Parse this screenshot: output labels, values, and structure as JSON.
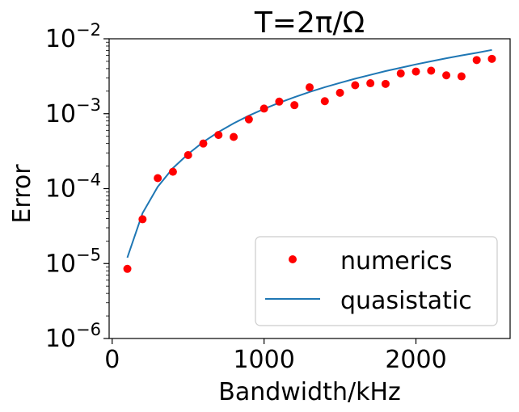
{
  "chart_data": {
    "type": "scatter",
    "title": "T=2π/Ω",
    "xlabel": "Bandwidth/kHz",
    "ylabel": "Error",
    "xlim": [
      -20,
      2620
    ],
    "ylim": [
      1e-06,
      0.01
    ],
    "yscale": "log",
    "grid": false,
    "legend_position": "lower-right",
    "x_ticks": [
      {
        "value": 0,
        "label": "0"
      },
      {
        "value": 1000,
        "label": "1000"
      },
      {
        "value": 2000,
        "label": "2000"
      }
    ],
    "y_ticks": [
      {
        "value": 1e-06,
        "base": "10",
        "exp": "−6"
      },
      {
        "value": 1e-05,
        "base": "10",
        "exp": "−5"
      },
      {
        "value": 0.0001,
        "base": "10",
        "exp": "−4"
      },
      {
        "value": 0.001,
        "base": "10",
        "exp": "−3"
      },
      {
        "value": 0.01,
        "base": "10",
        "exp": "−2"
      }
    ],
    "series": [
      {
        "name": "numerics",
        "kind": "scatter",
        "color": "#ff0000",
        "x": [
          100,
          200,
          300,
          400,
          500,
          600,
          700,
          800,
          900,
          1000,
          1100,
          1200,
          1300,
          1400,
          1500,
          1600,
          1700,
          1800,
          1900,
          2000,
          2100,
          2200,
          2300,
          2400,
          2500
        ],
        "y": [
          8.5e-06,
          3.9e-05,
          0.000138,
          0.000168,
          0.00028,
          0.0004,
          0.00052,
          0.00049,
          0.00084,
          0.00117,
          0.00145,
          0.0013,
          0.00225,
          0.00147,
          0.0019,
          0.0024,
          0.00255,
          0.0025,
          0.00345,
          0.00365,
          0.00375,
          0.00325,
          0.00315,
          0.0052,
          0.0054
        ]
      },
      {
        "name": "quasistatic",
        "kind": "line",
        "color": "#1f77b4",
        "x": [
          100,
          200,
          300,
          400,
          500,
          600,
          700,
          800,
          900,
          1000,
          1100,
          1200,
          1300,
          1400,
          1500,
          1600,
          1700,
          1800,
          1900,
          2000,
          2100,
          2200,
          2300,
          2400,
          2500
        ],
        "y": [
          1.2e-05,
          4.7e-05,
          0.000106,
          0.000188,
          0.00029,
          0.00042,
          0.00057,
          0.000745,
          0.00094,
          0.00116,
          0.0014,
          0.00166,
          0.00195,
          0.00226,
          0.00258,
          0.00293,
          0.0033,
          0.0037,
          0.0041,
          0.00455,
          0.005,
          0.0055,
          0.006,
          0.0065,
          0.0071
        ]
      }
    ]
  }
}
